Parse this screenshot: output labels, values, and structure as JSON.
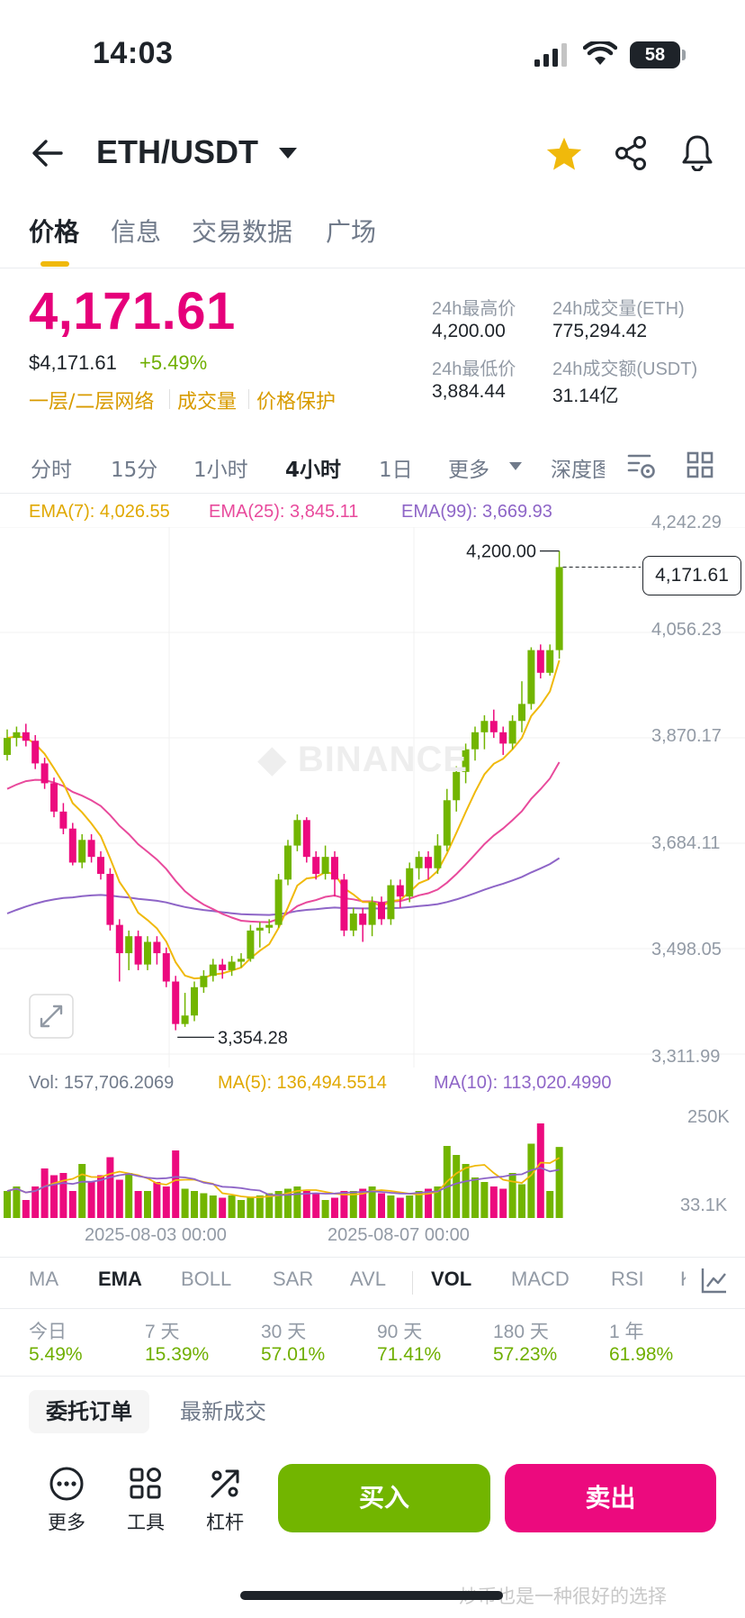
{
  "status_bar": {
    "time": "14:03",
    "battery": "58"
  },
  "header": {
    "pair": "ETH/USDT"
  },
  "tabs": [
    {
      "label": "价格",
      "active": true
    },
    {
      "label": "信息"
    },
    {
      "label": "交易数据"
    },
    {
      "label": "广场"
    }
  ],
  "price": {
    "last": "4,171.61",
    "usd": "$4,171.61",
    "change": "+5.49%",
    "links": [
      "一层/二层网络",
      "成交量",
      "价格保护"
    ]
  },
  "stats": {
    "high_label": "24h最高价",
    "high": "4,200.00",
    "low_label": "24h最低价",
    "low": "3,884.44",
    "vol_eth_label": "24h成交量(ETH)",
    "vol_eth": "775,294.42",
    "vol_usdt_label": "24h成交额(USDT)",
    "vol_usdt": "31.14亿"
  },
  "intervals": [
    "分时",
    "15分",
    "1小时",
    "4小时",
    "1日",
    "更多",
    "深度图"
  ],
  "active_interval": "4小时",
  "ema_legend": {
    "ema7": "EMA(7): 4,026.55",
    "ema25": "EMA(25): 3,845.11",
    "ema99": "EMA(99): 3,669.93"
  },
  "chart_data": {
    "type": "candlestick",
    "y_axis_ticks": [
      "4,242.29",
      "4,056.23",
      "3,870.17",
      "3,684.11",
      "3,498.05",
      "3,311.99"
    ],
    "ylim": [
      3311.99,
      4242.29
    ],
    "high_marker": "4,200.00",
    "low_marker": "3,354.28",
    "last_price": "4,171.61",
    "x_labels": [
      "2025-08-03 00:00",
      "2025-08-07 00:00"
    ],
    "candles": [
      [
        3840,
        3870,
        3830,
        3885
      ],
      [
        3870,
        3880,
        3855,
        3890
      ],
      [
        3880,
        3865,
        3855,
        3895
      ],
      [
        3865,
        3825,
        3815,
        3875
      ],
      [
        3825,
        3790,
        3780,
        3835
      ],
      [
        3790,
        3740,
        3730,
        3800
      ],
      [
        3740,
        3710,
        3700,
        3755
      ],
      [
        3710,
        3650,
        3645,
        3720
      ],
      [
        3650,
        3690,
        3640,
        3700
      ],
      [
        3690,
        3660,
        3650,
        3700
      ],
      [
        3660,
        3630,
        3620,
        3670
      ],
      [
        3630,
        3540,
        3530,
        3640
      ],
      [
        3540,
        3490,
        3440,
        3550
      ],
      [
        3490,
        3520,
        3460,
        3530
      ],
      [
        3520,
        3470,
        3460,
        3530
      ],
      [
        3470,
        3510,
        3460,
        3520
      ],
      [
        3510,
        3490,
        3470,
        3520
      ],
      [
        3490,
        3440,
        3430,
        3500
      ],
      [
        3440,
        3365,
        3354,
        3450
      ],
      [
        3365,
        3380,
        3360,
        3420
      ],
      [
        3380,
        3430,
        3370,
        3440
      ],
      [
        3430,
        3450,
        3420,
        3460
      ],
      [
        3450,
        3470,
        3440,
        3480
      ],
      [
        3470,
        3460,
        3445,
        3480
      ],
      [
        3460,
        3475,
        3450,
        3485
      ],
      [
        3475,
        3480,
        3465,
        3490
      ],
      [
        3480,
        3530,
        3475,
        3540
      ],
      [
        3530,
        3535,
        3500,
        3545
      ],
      [
        3535,
        3540,
        3525,
        3550
      ],
      [
        3540,
        3620,
        3535,
        3630
      ],
      [
        3620,
        3680,
        3610,
        3690
      ],
      [
        3680,
        3725,
        3670,
        3735
      ],
      [
        3725,
        3660,
        3650,
        3730
      ],
      [
        3660,
        3630,
        3620,
        3670
      ],
      [
        3630,
        3660,
        3620,
        3680
      ],
      [
        3660,
        3620,
        3590,
        3670
      ],
      [
        3620,
        3530,
        3520,
        3630
      ],
      [
        3530,
        3560,
        3520,
        3570
      ],
      [
        3560,
        3540,
        3510,
        3570
      ],
      [
        3540,
        3580,
        3520,
        3590
      ],
      [
        3580,
        3550,
        3540,
        3590
      ],
      [
        3550,
        3610,
        3540,
        3620
      ],
      [
        3610,
        3590,
        3570,
        3620
      ],
      [
        3590,
        3640,
        3580,
        3650
      ],
      [
        3640,
        3660,
        3620,
        3670
      ],
      [
        3660,
        3640,
        3620,
        3670
      ],
      [
        3640,
        3680,
        3630,
        3700
      ],
      [
        3680,
        3760,
        3670,
        3780
      ],
      [
        3760,
        3810,
        3740,
        3820
      ],
      [
        3810,
        3850,
        3790,
        3860
      ],
      [
        3850,
        3880,
        3830,
        3890
      ],
      [
        3880,
        3900,
        3850,
        3910
      ],
      [
        3900,
        3880,
        3870,
        3920
      ],
      [
        3880,
        3860,
        3840,
        3890
      ],
      [
        3860,
        3900,
        3850,
        3910
      ],
      [
        3900,
        3930,
        3880,
        3970
      ],
      [
        3930,
        4025,
        3920,
        4030
      ],
      [
        4025,
        3985,
        3975,
        4035
      ],
      [
        3985,
        4025,
        3980,
        4035
      ],
      [
        4025,
        4171.61,
        4010,
        4200
      ]
    ],
    "volume_axis": [
      "250K",
      "33.1K"
    ],
    "volume_legend": {
      "vol": "Vol: 157,706.2069",
      "ma5": "MA(5): 136,494.5514",
      "ma10": "MA(10): 113,020.4990"
    },
    "volumes": [
      60000,
      70000,
      40000,
      70000,
      110000,
      95000,
      100000,
      60000,
      120000,
      80000,
      95000,
      135000,
      85000,
      100000,
      60000,
      60000,
      80000,
      70000,
      150000,
      65000,
      60000,
      55000,
      50000,
      45000,
      50000,
      40000,
      45000,
      50000,
      55000,
      60000,
      65000,
      70000,
      60000,
      55000,
      40000,
      45000,
      60000,
      60000,
      65000,
      70000,
      55000,
      50000,
      45000,
      50000,
      60000,
      65000,
      70000,
      160000,
      140000,
      120000,
      90000,
      80000,
      70000,
      65000,
      100000,
      75000,
      165000,
      210000,
      60000,
      157706
    ]
  },
  "indicators": [
    "MA",
    "EMA",
    "BOLL",
    "SAR",
    "AVL",
    "VOL",
    "MACD",
    "RSI",
    "KDJ"
  ],
  "active_indicators": [
    "EMA",
    "VOL"
  ],
  "performance": [
    {
      "label": "今日",
      "value": "5.49%"
    },
    {
      "label": "7 天",
      "value": "15.39%"
    },
    {
      "label": "30 天",
      "value": "57.01%"
    },
    {
      "label": "90 天",
      "value": "71.41%"
    },
    {
      "label": "180 天",
      "value": "57.23%"
    },
    {
      "label": "1 年",
      "value": "61.98%"
    }
  ],
  "order_tabs": {
    "orders": "委托订单",
    "trades": "最新成交"
  },
  "bottom_tools": {
    "more": "更多",
    "tools": "工具",
    "leverage": "杠杆"
  },
  "actions": {
    "buy": "买入",
    "sell": "卖出"
  },
  "watermark": "炒币也是一种很好的选择",
  "colors": {
    "up": "#72b500",
    "down": "#ec0a7e",
    "accent": "#f0b90b",
    "ema7": "#f0b90b",
    "ema25": "#e84a9c",
    "ema99": "#8e65c7"
  }
}
